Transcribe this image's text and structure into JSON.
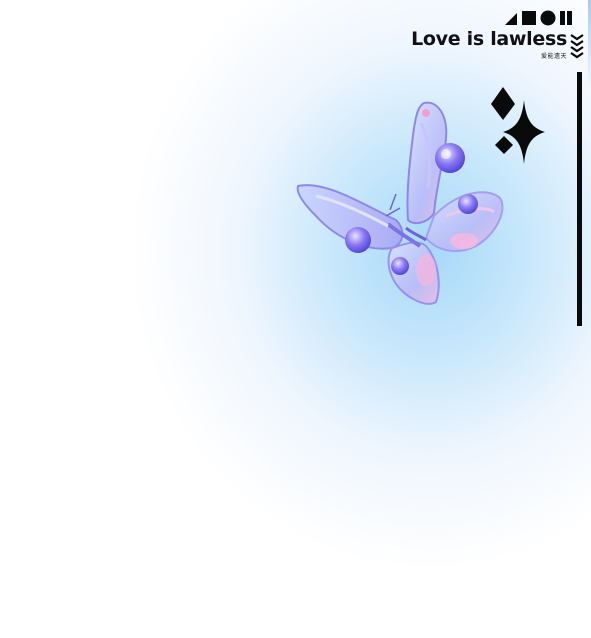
{
  "brand": {
    "title": "Love is lawless",
    "subtitle": "爱能遗天"
  },
  "icons": {
    "top_shapes": [
      "triangle-icon",
      "square-icon",
      "circle-icon",
      "bars-icon"
    ],
    "chevrons": "chevron-stack-icon",
    "sparkles": [
      "diamond-sparkle-icon",
      "star-sparkle-icon"
    ],
    "butterfly": "butterfly-illustration"
  },
  "colors": {
    "glow": "#9fd6f7",
    "ink": "#0a0a0a",
    "butterfly_violet": "#7a6cf0",
    "butterfly_pink": "#f2b3dd"
  }
}
